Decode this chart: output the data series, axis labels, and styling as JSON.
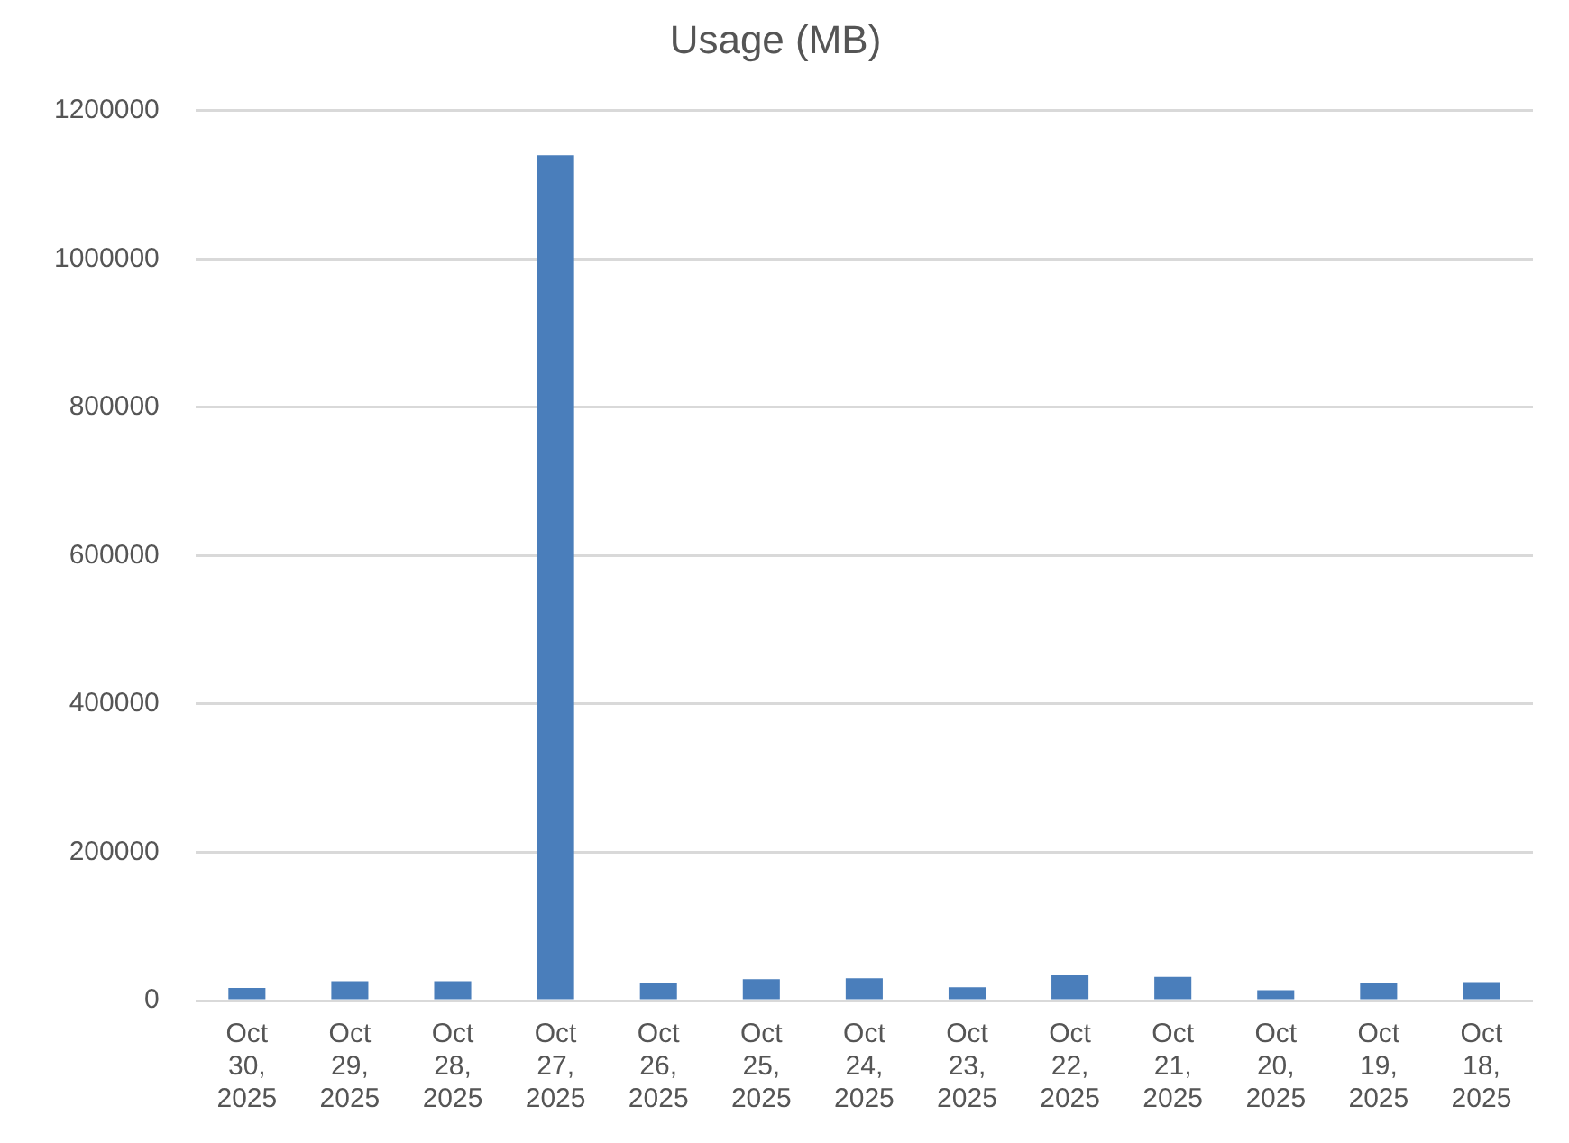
{
  "chart_data": {
    "type": "bar",
    "title": "Usage (MB)",
    "categories": [
      "Oct 30, 2025",
      "Oct 29, 2025",
      "Oct 28, 2025",
      "Oct 27, 2025",
      "Oct 26, 2025",
      "Oct 25, 2025",
      "Oct 24, 2025",
      "Oct 23, 2025",
      "Oct 22, 2025",
      "Oct 21, 2025",
      "Oct 20, 2025",
      "Oct 19, 2025",
      "Oct 18, 2025"
    ],
    "values": [
      17000,
      26000,
      26000,
      1140000,
      24000,
      29000,
      30000,
      18000,
      34000,
      32000,
      14000,
      23000,
      25000
    ],
    "color": "#4a7ebb",
    "ylim": [
      0,
      1200000
    ],
    "yticks": [
      0,
      200000,
      400000,
      600000,
      800000,
      1000000,
      1200000
    ],
    "grid": "y",
    "legend": false
  }
}
